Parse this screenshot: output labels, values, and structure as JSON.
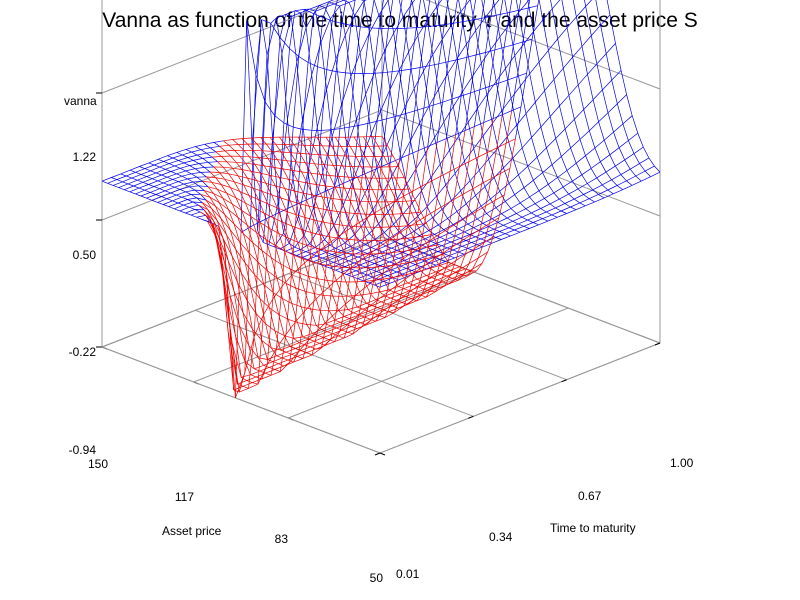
{
  "chart_data": {
    "type": "surface",
    "title_before": "Vanna as function of the time to maturity",
    "title_symbol": "τ",
    "title_after": "and the asset price S",
    "zlabel": "vanna",
    "xlabel": "Asset price",
    "ylabel": "Time to maturity",
    "z_ticks": [
      "1.22",
      "0.50",
      "-0.22",
      "-0.94"
    ],
    "x_ticks": [
      "150",
      "117",
      "83",
      "50"
    ],
    "y_ticks": [
      "0.01",
      "0.34",
      "0.67",
      "1.00"
    ],
    "x_range": [
      50,
      150
    ],
    "y_range": [
      0.01,
      1.0
    ],
    "z_range": [
      -0.94,
      1.22
    ],
    "wireframe": true,
    "colors": {
      "positive_mesh": "#0000ee",
      "negative_mesh": "#ee0000",
      "box": "#999999"
    }
  }
}
